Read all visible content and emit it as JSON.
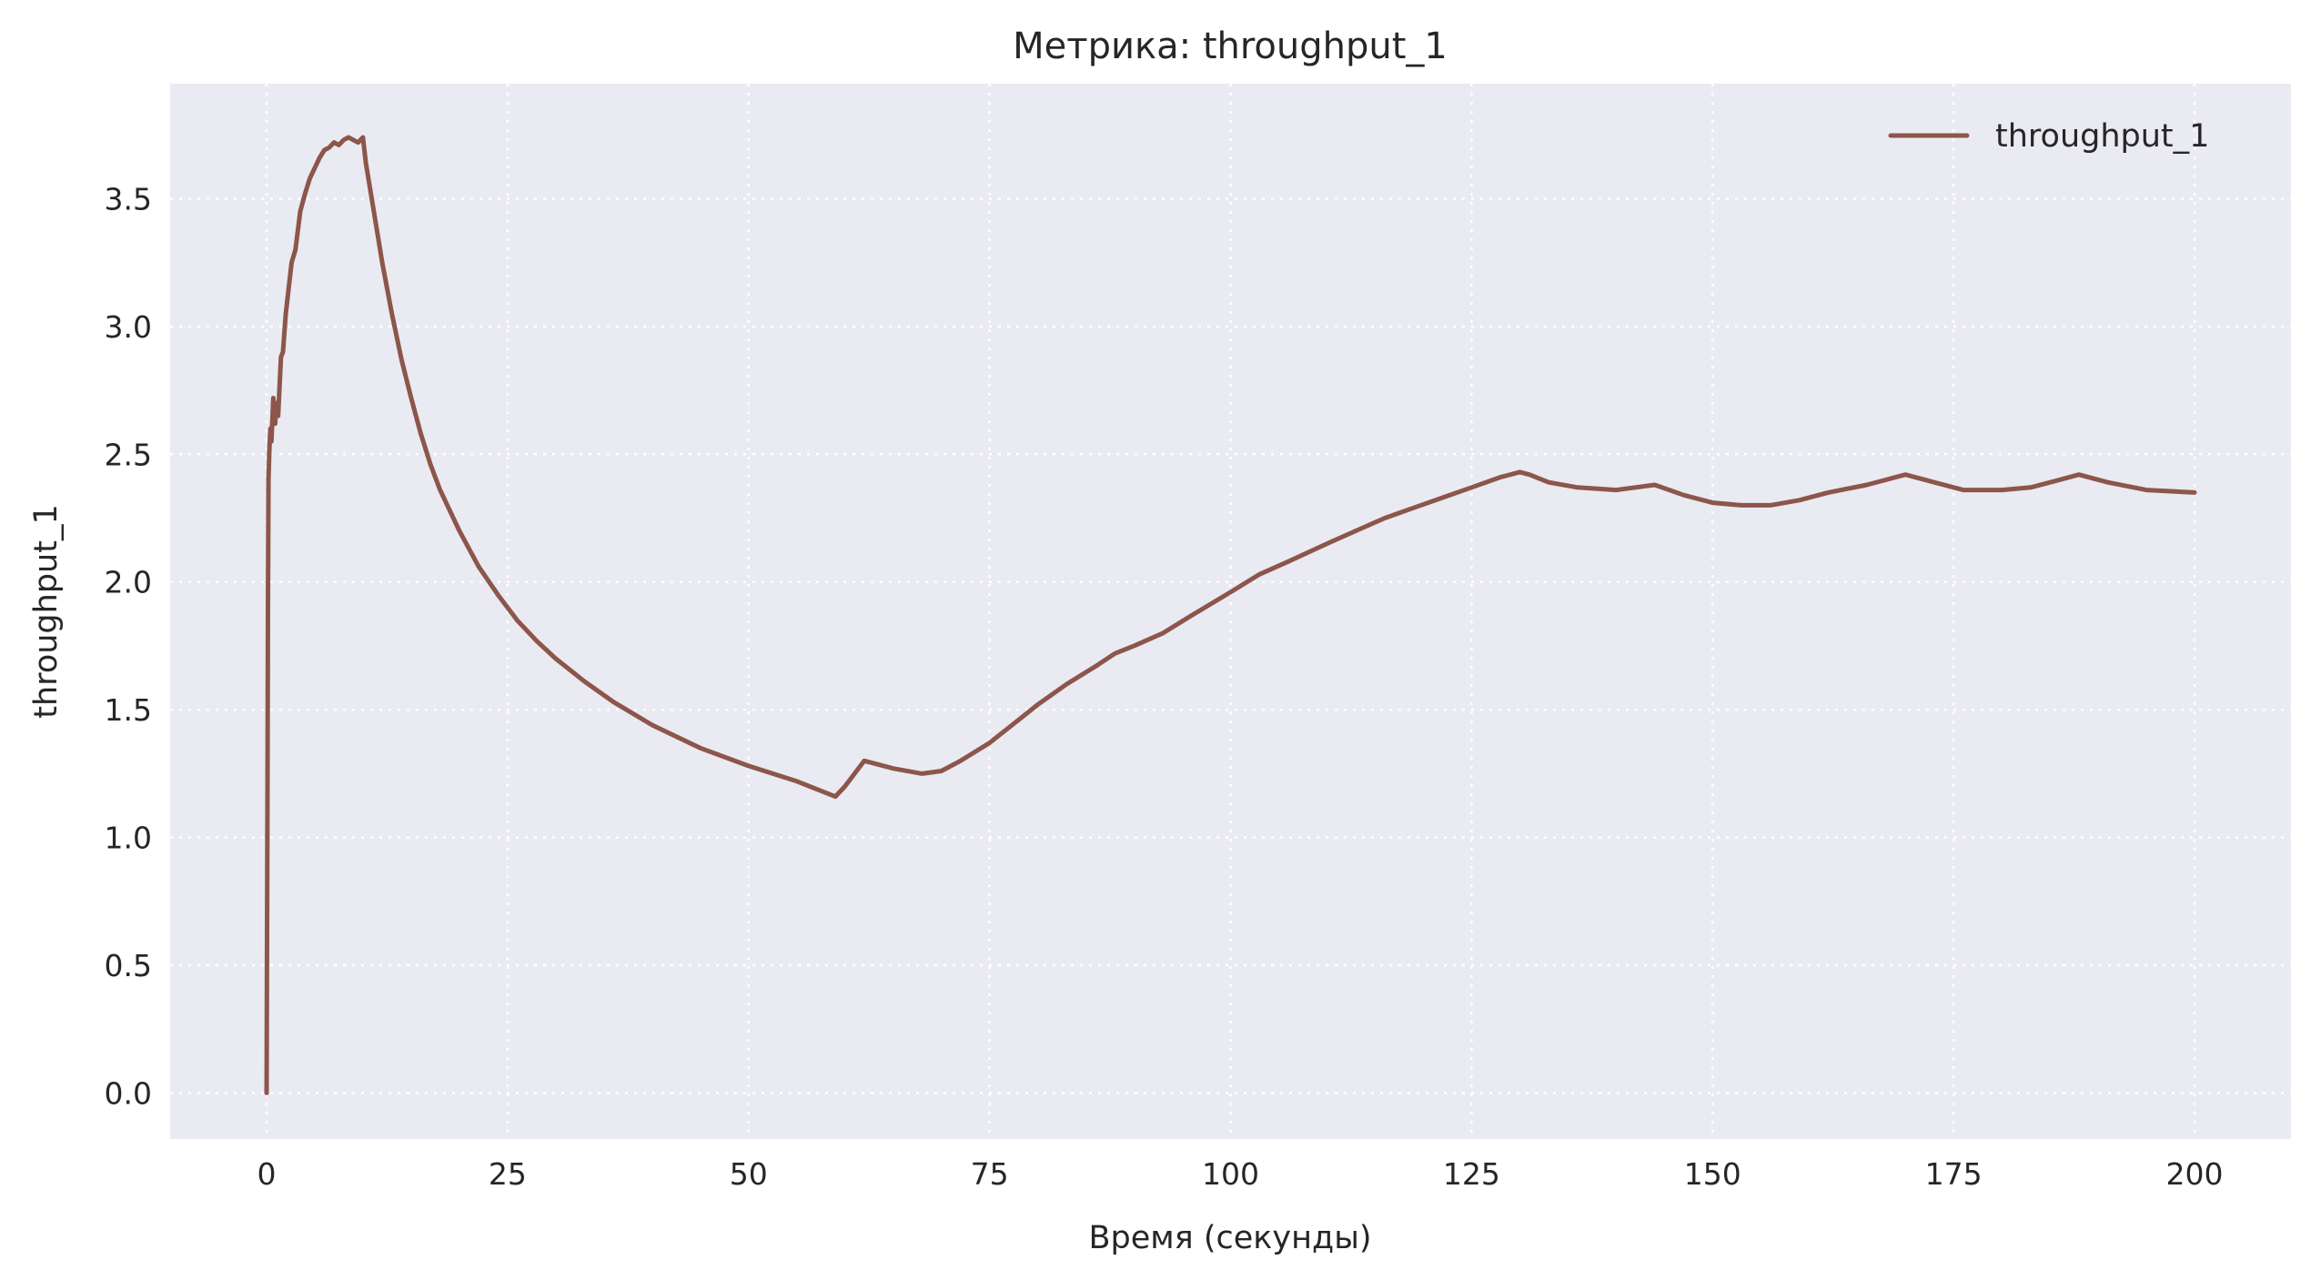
{
  "chart_data": {
    "type": "line",
    "title": "Метрика: throughput_1",
    "xlabel": "Время (секунды)",
    "ylabel": "throughput_1",
    "xlim": [
      -10,
      210
    ],
    "ylim": [
      -0.18,
      3.95
    ],
    "xticks": [
      0,
      25,
      50,
      75,
      100,
      125,
      150,
      175,
      200
    ],
    "xtick_labels": [
      "0",
      "25",
      "50",
      "75",
      "100",
      "125",
      "150",
      "175",
      "200"
    ],
    "yticks": [
      0.0,
      0.5,
      1.0,
      1.5,
      2.0,
      2.5,
      3.0,
      3.5
    ],
    "ytick_labels": [
      "0.0",
      "0.5",
      "1.0",
      "1.5",
      "2.0",
      "2.5",
      "3.0",
      "3.5"
    ],
    "grid": true,
    "legend_position": "top-right",
    "colors": {
      "plot_background": "#EAEAF2",
      "line": "#8C564B",
      "grid": "#FFFFFF",
      "text": "#262626"
    },
    "series": [
      {
        "name": "throughput_1",
        "x": [
          0,
          0.1,
          0.15,
          0.2,
          0.3,
          0.4,
          0.5,
          0.7,
          0.9,
          1.0,
          1.2,
          1.5,
          1.7,
          2.0,
          2.3,
          2.6,
          3.0,
          3.5,
          4.0,
          4.5,
          5.0,
          5.5,
          6.0,
          6.5,
          7.0,
          7.5,
          8.0,
          8.5,
          9.0,
          9.5,
          10.0,
          10.3,
          11,
          12,
          13,
          14,
          15,
          16,
          17,
          18,
          20,
          22,
          24,
          26,
          28,
          30,
          33,
          36,
          40,
          45,
          50,
          55,
          59,
          60,
          62,
          65,
          68,
          70,
          72,
          75,
          78,
          80,
          83,
          86,
          88,
          90,
          93,
          96,
          100,
          103,
          106,
          110,
          113,
          116,
          119,
          122,
          125,
          128,
          130,
          131,
          133,
          136,
          140,
          144,
          147,
          150,
          153,
          156,
          159,
          162,
          166,
          170,
          173,
          176,
          180,
          183,
          186,
          188,
          191,
          195,
          200
        ],
        "y": [
          0.0,
          1.2,
          1.9,
          2.4,
          2.52,
          2.6,
          2.55,
          2.72,
          2.62,
          2.7,
          2.65,
          2.88,
          2.9,
          3.05,
          3.15,
          3.25,
          3.3,
          3.45,
          3.52,
          3.58,
          3.62,
          3.66,
          3.69,
          3.7,
          3.72,
          3.71,
          3.73,
          3.74,
          3.73,
          3.72,
          3.74,
          3.64,
          3.48,
          3.25,
          3.05,
          2.87,
          2.72,
          2.58,
          2.46,
          2.36,
          2.2,
          2.06,
          1.95,
          1.85,
          1.77,
          1.7,
          1.61,
          1.53,
          1.44,
          1.35,
          1.28,
          1.22,
          1.16,
          1.2,
          1.3,
          1.27,
          1.25,
          1.26,
          1.3,
          1.37,
          1.46,
          1.52,
          1.6,
          1.67,
          1.72,
          1.75,
          1.8,
          1.87,
          1.96,
          2.03,
          2.08,
          2.15,
          2.2,
          2.25,
          2.29,
          2.33,
          2.37,
          2.41,
          2.43,
          2.42,
          2.39,
          2.37,
          2.36,
          2.38,
          2.34,
          2.31,
          2.3,
          2.3,
          2.32,
          2.35,
          2.38,
          2.42,
          2.39,
          2.36,
          2.36,
          2.37,
          2.4,
          2.42,
          2.39,
          2.36,
          2.35
        ]
      }
    ]
  }
}
